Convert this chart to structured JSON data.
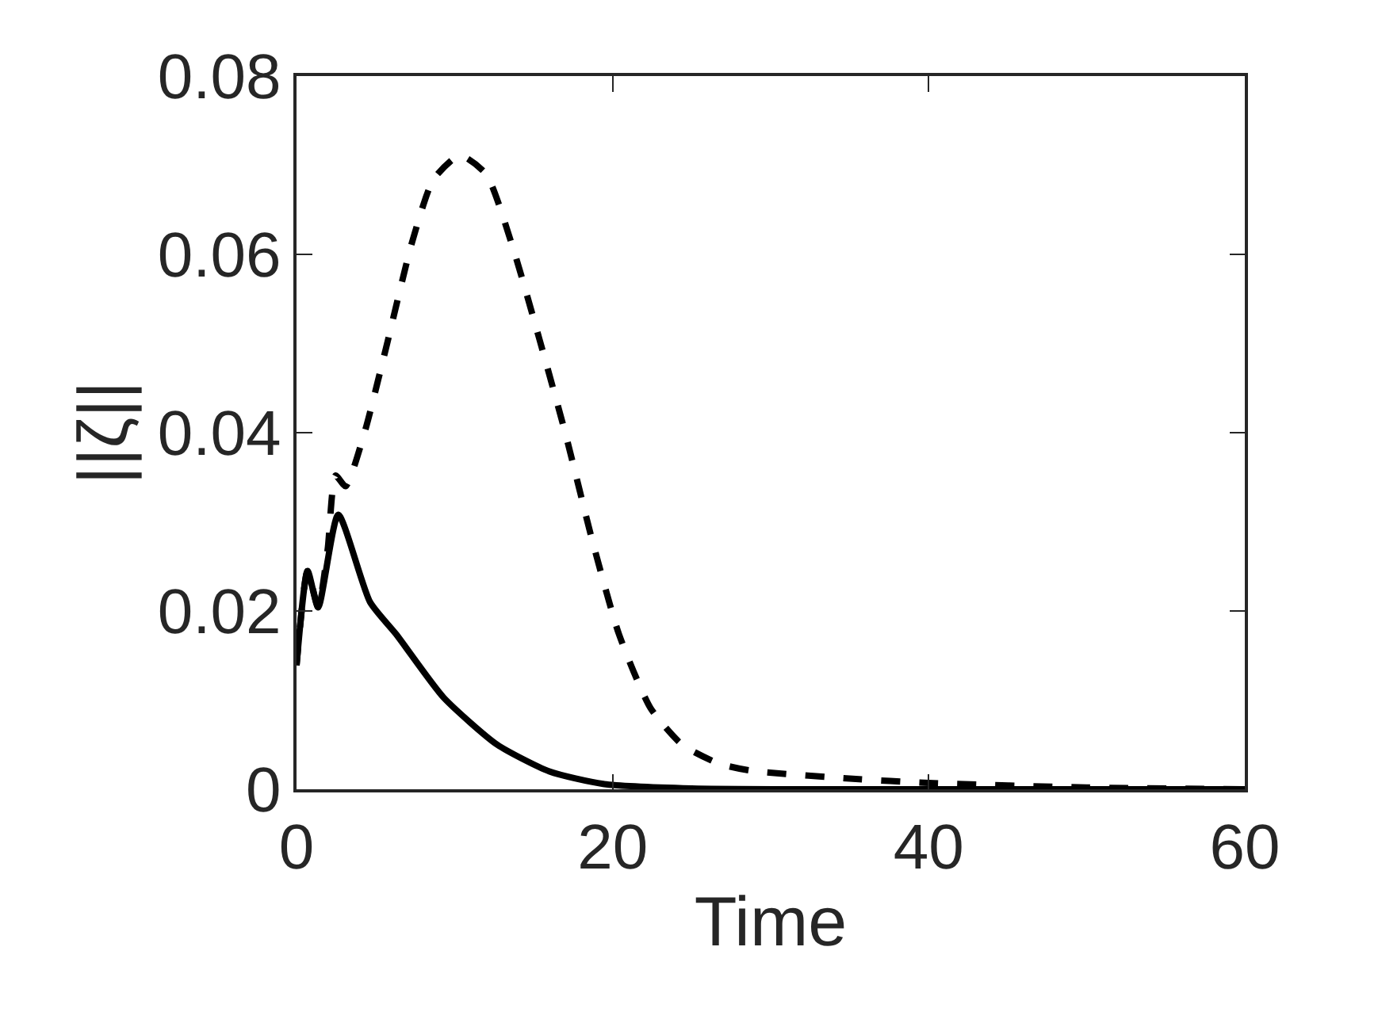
{
  "chart_data": {
    "type": "line",
    "xlabel": "Time",
    "ylabel": "||ζ||",
    "xlim": [
      0,
      60
    ],
    "xticks": [
      0,
      20,
      40,
      60
    ],
    "ylim": [
      0,
      0.08
    ],
    "yticks": [
      0,
      0.02,
      0.04,
      0.06,
      0.08
    ],
    "grid": false,
    "series": [
      {
        "color": "#000000",
        "line_style": "solid",
        "x": [
          0,
          0.7,
          1.37,
          2.64,
          4.65,
          6.3,
          9.3,
          12.7,
          16,
          19.4,
          25,
          35,
          60
        ],
        "values": [
          0.0139,
          0.0245,
          0.0204,
          0.0308,
          0.021,
          0.0174,
          0.0103,
          0.005,
          0.002,
          0.0006,
          0.0001,
          0,
          0
        ]
      },
      {
        "color": "#000000",
        "line_style": "dashed",
        "x": [
          0,
          0.7,
          1.37,
          1.97,
          2.47,
          3.1,
          4.3,
          5.65,
          7.3,
          8.66,
          10.33,
          12,
          13.7,
          15.35,
          17,
          18.7,
          20.4,
          22.4,
          24.4,
          26.7,
          28.7,
          35,
          40,
          50,
          60
        ],
        "values": [
          0.0139,
          0.0245,
          0.0204,
          0.0269,
          0.0352,
          0.034,
          0.04,
          0.0494,
          0.0613,
          0.0684,
          0.0711,
          0.069,
          0.0607,
          0.0506,
          0.04,
          0.028,
          0.0174,
          0.0091,
          0.005,
          0.0029,
          0.0021,
          0.0012,
          0.0007,
          0.0002,
          0
        ]
      }
    ]
  }
}
